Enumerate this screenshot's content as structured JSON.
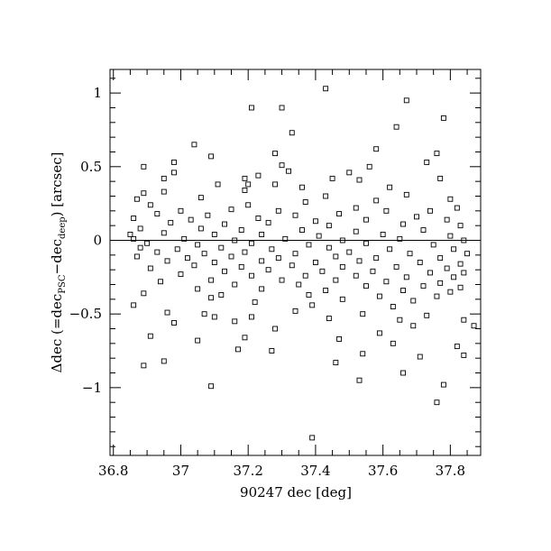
{
  "chart_data": {
    "type": "scatter",
    "title": "",
    "xlabel": "90247 dec [deg]",
    "ylabel": "Δdec (=dec_PSC−dec_deep) [arcsec]",
    "ylabel_parts": {
      "prefix": "Δdec (=dec",
      "sub1": "PSC",
      "mid": "−dec",
      "sub2": "deep",
      "suffix": ") [arcsec]"
    },
    "xlim": [
      36.79,
      37.89
    ],
    "ylim": [
      -1.46,
      1.16
    ],
    "x_ticks": [
      {
        "value": 36.8,
        "label": "36.8"
      },
      {
        "value": 37.0,
        "label": "37"
      },
      {
        "value": 37.2,
        "label": "37.2"
      },
      {
        "value": 37.4,
        "label": "37.4"
      },
      {
        "value": 37.6,
        "label": "37.6"
      },
      {
        "value": 37.8,
        "label": "37.8"
      }
    ],
    "y_ticks": [
      {
        "value": 1.0,
        "label": "1"
      },
      {
        "value": 0.5,
        "label": "0.5"
      },
      {
        "value": 0.0,
        "label": "0"
      },
      {
        "value": -0.5,
        "label": "−0.5"
      },
      {
        "value": -1.0,
        "label": "−1"
      }
    ],
    "x_minor_step": 0.05,
    "y_minor_step": 0.1,
    "reference_line_y": 0,
    "grid": false,
    "legend": "none",
    "marker": "open-square",
    "series": [
      {
        "points": [
          [
            37.43,
            1.03
          ],
          [
            37.67,
            0.95
          ],
          [
            37.21,
            0.9
          ],
          [
            37.3,
            0.9
          ],
          [
            37.78,
            0.83
          ],
          [
            37.64,
            0.77
          ],
          [
            37.33,
            0.73
          ],
          [
            37.04,
            0.65
          ],
          [
            37.58,
            0.62
          ],
          [
            37.28,
            0.59
          ],
          [
            37.76,
            0.59
          ],
          [
            37.09,
            0.57
          ],
          [
            37.73,
            0.53
          ],
          [
            36.98,
            0.53
          ],
          [
            37.3,
            0.51
          ],
          [
            36.89,
            0.5
          ],
          [
            37.56,
            0.5
          ],
          [
            37.32,
            0.47
          ],
          [
            36.98,
            0.46
          ],
          [
            37.5,
            0.46
          ],
          [
            37.23,
            0.44
          ],
          [
            37.45,
            0.42
          ],
          [
            37.19,
            0.42
          ],
          [
            36.95,
            0.42
          ],
          [
            37.53,
            0.41
          ],
          [
            37.77,
            0.42
          ],
          [
            37.2,
            0.38
          ],
          [
            37.28,
            0.38
          ],
          [
            37.11,
            0.38
          ],
          [
            37.36,
            0.36
          ],
          [
            37.62,
            0.36
          ],
          [
            36.89,
            0.32
          ],
          [
            37.19,
            0.34
          ],
          [
            36.95,
            0.33
          ],
          [
            37.43,
            0.3
          ],
          [
            37.67,
            0.31
          ],
          [
            36.87,
            0.28
          ],
          [
            37.06,
            0.29
          ],
          [
            37.8,
            0.28
          ],
          [
            37.37,
            0.26
          ],
          [
            37.58,
            0.27
          ],
          [
            36.91,
            0.24
          ],
          [
            37.2,
            0.24
          ],
          [
            37.52,
            0.22
          ],
          [
            37.82,
            0.22
          ],
          [
            37.0,
            0.2
          ],
          [
            37.15,
            0.21
          ],
          [
            37.29,
            0.2
          ],
          [
            37.61,
            0.2
          ],
          [
            37.74,
            0.2
          ],
          [
            36.93,
            0.18
          ],
          [
            37.08,
            0.17
          ],
          [
            37.34,
            0.17
          ],
          [
            37.47,
            0.18
          ],
          [
            37.7,
            0.16
          ],
          [
            36.86,
            0.15
          ],
          [
            37.03,
            0.14
          ],
          [
            37.23,
            0.15
          ],
          [
            37.4,
            0.13
          ],
          [
            37.55,
            0.14
          ],
          [
            37.79,
            0.14
          ],
          [
            36.97,
            0.12
          ],
          [
            37.13,
            0.11
          ],
          [
            37.26,
            0.12
          ],
          [
            37.44,
            0.1
          ],
          [
            37.66,
            0.11
          ],
          [
            37.83,
            0.1
          ],
          [
            36.88,
            0.08
          ],
          [
            37.06,
            0.08
          ],
          [
            37.18,
            0.07
          ],
          [
            37.36,
            0.07
          ],
          [
            37.52,
            0.06
          ],
          [
            37.72,
            0.07
          ],
          [
            36.85,
            0.04
          ],
          [
            36.95,
            0.05
          ],
          [
            37.1,
            0.04
          ],
          [
            37.24,
            0.04
          ],
          [
            37.41,
            0.03
          ],
          [
            37.6,
            0.04
          ],
          [
            37.8,
            0.03
          ],
          [
            36.86,
            0.01
          ],
          [
            37.01,
            0.01
          ],
          [
            37.16,
            0.0
          ],
          [
            37.31,
            0.01
          ],
          [
            37.48,
            0.0
          ],
          [
            37.65,
            0.01
          ],
          [
            37.84,
            0.0
          ],
          [
            36.9,
            -0.02
          ],
          [
            37.05,
            -0.03
          ],
          [
            37.21,
            -0.02
          ],
          [
            37.38,
            -0.03
          ],
          [
            37.55,
            -0.02
          ],
          [
            37.75,
            -0.03
          ],
          [
            36.88,
            -0.05
          ],
          [
            36.99,
            -0.06
          ],
          [
            37.12,
            -0.05
          ],
          [
            37.27,
            -0.06
          ],
          [
            37.44,
            -0.05
          ],
          [
            37.62,
            -0.06
          ],
          [
            37.81,
            -0.06
          ],
          [
            36.93,
            -0.08
          ],
          [
            37.07,
            -0.09
          ],
          [
            37.19,
            -0.08
          ],
          [
            37.34,
            -0.09
          ],
          [
            37.5,
            -0.08
          ],
          [
            37.68,
            -0.09
          ],
          [
            37.85,
            -0.09
          ],
          [
            36.87,
            -0.11
          ],
          [
            37.02,
            -0.12
          ],
          [
            37.15,
            -0.11
          ],
          [
            37.29,
            -0.12
          ],
          [
            37.46,
            -0.11
          ],
          [
            37.58,
            -0.12
          ],
          [
            37.77,
            -0.12
          ],
          [
            36.96,
            -0.14
          ],
          [
            37.1,
            -0.15
          ],
          [
            37.24,
            -0.14
          ],
          [
            37.4,
            -0.15
          ],
          [
            37.53,
            -0.14
          ],
          [
            37.71,
            -0.15
          ],
          [
            37.83,
            -0.16
          ],
          [
            37.04,
            -0.17
          ],
          [
            37.18,
            -0.18
          ],
          [
            37.33,
            -0.17
          ],
          [
            37.48,
            -0.18
          ],
          [
            37.64,
            -0.18
          ],
          [
            37.79,
            -0.19
          ],
          [
            36.91,
            -0.19
          ],
          [
            37.13,
            -0.21
          ],
          [
            37.26,
            -0.2
          ],
          [
            37.42,
            -0.21
          ],
          [
            37.57,
            -0.21
          ],
          [
            37.74,
            -0.22
          ],
          [
            37.84,
            -0.22
          ],
          [
            37.0,
            -0.23
          ],
          [
            37.21,
            -0.24
          ],
          [
            37.37,
            -0.24
          ],
          [
            37.52,
            -0.24
          ],
          [
            37.67,
            -0.25
          ],
          [
            37.81,
            -0.25
          ],
          [
            37.09,
            -0.27
          ],
          [
            37.3,
            -0.27
          ],
          [
            37.46,
            -0.27
          ],
          [
            37.61,
            -0.28
          ],
          [
            37.77,
            -0.29
          ],
          [
            36.94,
            -0.28
          ],
          [
            37.16,
            -0.3
          ],
          [
            37.35,
            -0.3
          ],
          [
            37.55,
            -0.31
          ],
          [
            37.72,
            -0.31
          ],
          [
            37.83,
            -0.32
          ],
          [
            37.05,
            -0.33
          ],
          [
            37.24,
            -0.33
          ],
          [
            37.43,
            -0.34
          ],
          [
            37.66,
            -0.34
          ],
          [
            37.8,
            -0.35
          ],
          [
            36.89,
            -0.36
          ],
          [
            37.12,
            -0.37
          ],
          [
            37.38,
            -0.37
          ],
          [
            37.59,
            -0.38
          ],
          [
            37.76,
            -0.38
          ],
          [
            37.09,
            -0.39
          ],
          [
            37.48,
            -0.4
          ],
          [
            37.69,
            -0.41
          ],
          [
            37.22,
            -0.42
          ],
          [
            36.86,
            -0.44
          ],
          [
            37.39,
            -0.44
          ],
          [
            37.63,
            -0.45
          ],
          [
            36.96,
            -0.49
          ],
          [
            37.34,
            -0.48
          ],
          [
            37.54,
            -0.5
          ],
          [
            37.07,
            -0.5
          ],
          [
            37.73,
            -0.51
          ],
          [
            37.1,
            -0.52
          ],
          [
            37.21,
            -0.52
          ],
          [
            37.44,
            -0.53
          ],
          [
            37.65,
            -0.54
          ],
          [
            37.84,
            -0.54
          ],
          [
            37.16,
            -0.55
          ],
          [
            36.98,
            -0.56
          ],
          [
            37.69,
            -0.58
          ],
          [
            37.87,
            -0.58
          ],
          [
            37.28,
            -0.6
          ],
          [
            37.59,
            -0.63
          ],
          [
            36.91,
            -0.65
          ],
          [
            37.19,
            -0.66
          ],
          [
            37.47,
            -0.67
          ],
          [
            37.05,
            -0.68
          ],
          [
            37.63,
            -0.7
          ],
          [
            37.82,
            -0.72
          ],
          [
            37.17,
            -0.74
          ],
          [
            37.27,
            -0.75
          ],
          [
            37.54,
            -0.77
          ],
          [
            37.84,
            -0.78
          ],
          [
            37.71,
            -0.79
          ],
          [
            36.95,
            -0.82
          ],
          [
            37.46,
            -0.83
          ],
          [
            36.89,
            -0.85
          ],
          [
            37.66,
            -0.9
          ],
          [
            37.53,
            -0.95
          ],
          [
            37.78,
            -0.98
          ],
          [
            37.09,
            -0.99
          ],
          [
            37.76,
            -1.1
          ],
          [
            37.39,
            -1.34
          ]
        ]
      }
    ]
  }
}
